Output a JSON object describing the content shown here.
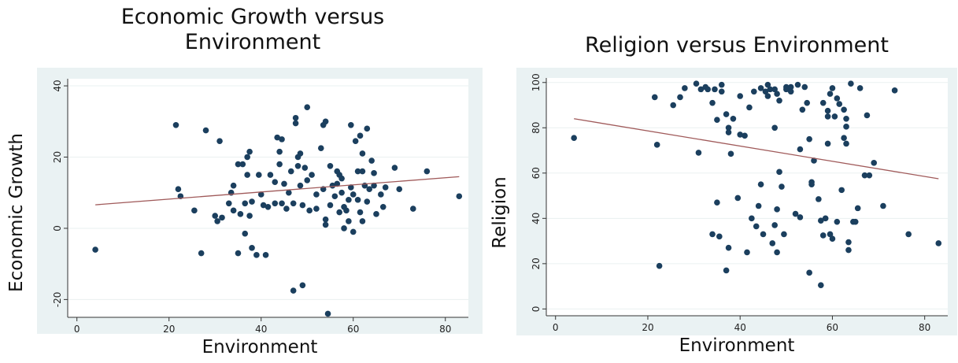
{
  "chart_data": [
    {
      "type": "scatter",
      "title_line1": "Economic Growth versus",
      "title_line2": "Environment",
      "xlabel": "Environment",
      "ylabel": "Economic Growth",
      "xlim": [
        -2,
        85
      ],
      "ylim": [
        -25,
        42
      ],
      "xticks": [
        0,
        20,
        40,
        60,
        80
      ],
      "yticks": [
        -20,
        0,
        20,
        40
      ],
      "grid": true,
      "marker_color": "#1b3f5e",
      "fit_color": "#a05a5a",
      "fit_line": {
        "x": [
          4,
          83
        ],
        "y": [
          6.6,
          14.5
        ]
      },
      "points": [
        [
          4,
          -6
        ],
        [
          21.5,
          29
        ],
        [
          22,
          11
        ],
        [
          22.5,
          9
        ],
        [
          25.5,
          5
        ],
        [
          27,
          -7
        ],
        [
          28,
          27.5
        ],
        [
          30,
          3.5
        ],
        [
          30.5,
          2
        ],
        [
          31,
          24.5
        ],
        [
          31.5,
          3
        ],
        [
          33,
          7
        ],
        [
          33.5,
          10
        ],
        [
          34,
          12
        ],
        [
          34,
          5
        ],
        [
          35,
          -7
        ],
        [
          35,
          18
        ],
        [
          35.5,
          4
        ],
        [
          36,
          18
        ],
        [
          36.5,
          7
        ],
        [
          36.5,
          -1.5
        ],
        [
          37,
          20
        ],
        [
          37,
          15
        ],
        [
          37.5,
          21.5
        ],
        [
          37.5,
          3.5
        ],
        [
          38,
          -5.5
        ],
        [
          38,
          7.5
        ],
        [
          39,
          -7.5
        ],
        [
          39.5,
          15
        ],
        [
          40,
          9.5
        ],
        [
          40.5,
          6.5
        ],
        [
          41,
          -7.5
        ],
        [
          41.5,
          6
        ],
        [
          42,
          15
        ],
        [
          43,
          13
        ],
        [
          43,
          7
        ],
        [
          43.5,
          25.5
        ],
        [
          44,
          21.5
        ],
        [
          44,
          18
        ],
        [
          44.5,
          25
        ],
        [
          44.5,
          7
        ],
        [
          45,
          12.5
        ],
        [
          45.5,
          5.5
        ],
        [
          46,
          10
        ],
        [
          46.5,
          16
        ],
        [
          47,
          7
        ],
        [
          47,
          -17.5
        ],
        [
          47.5,
          31
        ],
        [
          47.5,
          29.5
        ],
        [
          48,
          20
        ],
        [
          48,
          17.5
        ],
        [
          48.5,
          12
        ],
        [
          48.5,
          21
        ],
        [
          49,
          6.5
        ],
        [
          49,
          -16
        ],
        [
          49.5,
          17
        ],
        [
          50,
          34
        ],
        [
          50,
          13.5
        ],
        [
          50.5,
          5
        ],
        [
          51,
          15
        ],
        [
          52,
          9.5
        ],
        [
          52,
          5.5
        ],
        [
          53,
          22.5
        ],
        [
          53.5,
          29
        ],
        [
          53.5,
          11
        ],
        [
          54,
          2.5
        ],
        [
          54,
          1
        ],
        [
          54,
          30
        ],
        [
          54.5,
          -24
        ],
        [
          55,
          17.5
        ],
        [
          55,
          6.5
        ],
        [
          55.5,
          12
        ],
        [
          56,
          9
        ],
        [
          56.5,
          16
        ],
        [
          56.5,
          12.5
        ],
        [
          57,
          4.5
        ],
        [
          57,
          15
        ],
        [
          57.5,
          14
        ],
        [
          57.5,
          10
        ],
        [
          58,
          6
        ],
        [
          58,
          0
        ],
        [
          58.5,
          5
        ],
        [
          59,
          8
        ],
        [
          59,
          2
        ],
        [
          59.5,
          29
        ],
        [
          59.5,
          11.5
        ],
        [
          60,
          9.5
        ],
        [
          60,
          -1
        ],
        [
          60.5,
          24.5
        ],
        [
          61,
          8
        ],
        [
          61,
          16
        ],
        [
          61.5,
          4.5
        ],
        [
          61.5,
          26
        ],
        [
          62,
          21
        ],
        [
          62,
          16
        ],
        [
          62,
          2
        ],
        [
          62.5,
          12
        ],
        [
          63,
          28
        ],
        [
          63,
          7.5
        ],
        [
          63.5,
          11
        ],
        [
          64,
          19
        ],
        [
          64.5,
          12
        ],
        [
          64.5,
          15.5
        ],
        [
          65,
          4
        ],
        [
          66,
          9.5
        ],
        [
          66.5,
          6
        ],
        [
          67,
          11.5
        ],
        [
          69,
          17
        ],
        [
          70,
          11
        ],
        [
          73,
          5.5
        ],
        [
          76,
          16
        ],
        [
          83,
          9
        ]
      ]
    },
    {
      "type": "scatter",
      "title_line1": "Religion versus Environment",
      "xlabel": "Environment",
      "ylabel": "Religion",
      "xlim": [
        -2,
        85
      ],
      "ylim": [
        -3,
        102
      ],
      "xticks": [
        0,
        20,
        40,
        60,
        80
      ],
      "yticks": [
        0,
        20,
        40,
        60,
        80,
        100
      ],
      "grid": true,
      "marker_color": "#1b3f5e",
      "fit_color": "#a05a5a",
      "fit_line": {
        "x": [
          4,
          83
        ],
        "y": [
          84,
          57.5
        ]
      },
      "points": [
        [
          4,
          75.5
        ],
        [
          21.5,
          93.5
        ],
        [
          22,
          72.5
        ],
        [
          22.5,
          19
        ],
        [
          25.5,
          90
        ],
        [
          27,
          93.5
        ],
        [
          28,
          97.5
        ],
        [
          30.5,
          99.5
        ],
        [
          31,
          69
        ],
        [
          31.5,
          97
        ],
        [
          32.5,
          98
        ],
        [
          33,
          97
        ],
        [
          34,
          33
        ],
        [
          34,
          91
        ],
        [
          34.5,
          97
        ],
        [
          35,
          83.5
        ],
        [
          35,
          47
        ],
        [
          35.5,
          32
        ],
        [
          36,
          99
        ],
        [
          36,
          96
        ],
        [
          37,
          86
        ],
        [
          37,
          17
        ],
        [
          37.5,
          27
        ],
        [
          37.5,
          80
        ],
        [
          37.5,
          78
        ],
        [
          38,
          68.5
        ],
        [
          38.5,
          84
        ],
        [
          39.5,
          49
        ],
        [
          40,
          77
        ],
        [
          40,
          94
        ],
        [
          41,
          76.5
        ],
        [
          41.5,
          25
        ],
        [
          42,
          89
        ],
        [
          42.5,
          40
        ],
        [
          43,
          96
        ],
        [
          43.5,
          36.5
        ],
        [
          44,
          45.5
        ],
        [
          44.5,
          55
        ],
        [
          44.5,
          97.5
        ],
        [
          45,
          33
        ],
        [
          45.5,
          96
        ],
        [
          46,
          99
        ],
        [
          46,
          94
        ],
        [
          46.5,
          97
        ],
        [
          47,
          29
        ],
        [
          47.5,
          97
        ],
        [
          47.5,
          80
        ],
        [
          47.5,
          37
        ],
        [
          48,
          95
        ],
        [
          48,
          44
        ],
        [
          48,
          25
        ],
        [
          48.5,
          60.5
        ],
        [
          48.5,
          92
        ],
        [
          49,
          54
        ],
        [
          49.5,
          33
        ],
        [
          50,
          98
        ],
        [
          50,
          97
        ],
        [
          51,
          98
        ],
        [
          51,
          96
        ],
        [
          52,
          42
        ],
        [
          52.5,
          99
        ],
        [
          53,
          40.5
        ],
        [
          53,
          70.5
        ],
        [
          53.5,
          88
        ],
        [
          54,
          98
        ],
        [
          54.5,
          91
        ],
        [
          55,
          75
        ],
        [
          55,
          16
        ],
        [
          55.5,
          56
        ],
        [
          55.5,
          55
        ],
        [
          56,
          65.5
        ],
        [
          57,
          48.5
        ],
        [
          57.5,
          39
        ],
        [
          57.5,
          10.5
        ],
        [
          58,
          32.5
        ],
        [
          58,
          91
        ],
        [
          58.5,
          40
        ],
        [
          59,
          73
        ],
        [
          59,
          87.5
        ],
        [
          59,
          85
        ],
        [
          59.5,
          33
        ],
        [
          59.5,
          95
        ],
        [
          60,
          31
        ],
        [
          60,
          97.5
        ],
        [
          60.5,
          85
        ],
        [
          61,
          93
        ],
        [
          61,
          38.5
        ],
        [
          61.5,
          90.5
        ],
        [
          62,
          52.5
        ],
        [
          62.5,
          88
        ],
        [
          62.5,
          75.5
        ],
        [
          63,
          73
        ],
        [
          63,
          84
        ],
        [
          63,
          80.5
        ],
        [
          63.5,
          26
        ],
        [
          63.5,
          29.5
        ],
        [
          64,
          99.5
        ],
        [
          64.5,
          38.5
        ],
        [
          65,
          38.5
        ],
        [
          65.5,
          44.5
        ],
        [
          66,
          97.5
        ],
        [
          67,
          59
        ],
        [
          67.5,
          85.5
        ],
        [
          68,
          59
        ],
        [
          69,
          64.5
        ],
        [
          71,
          45.5
        ],
        [
          73.5,
          96.5
        ],
        [
          76.5,
          33
        ],
        [
          83,
          29
        ]
      ]
    }
  ]
}
